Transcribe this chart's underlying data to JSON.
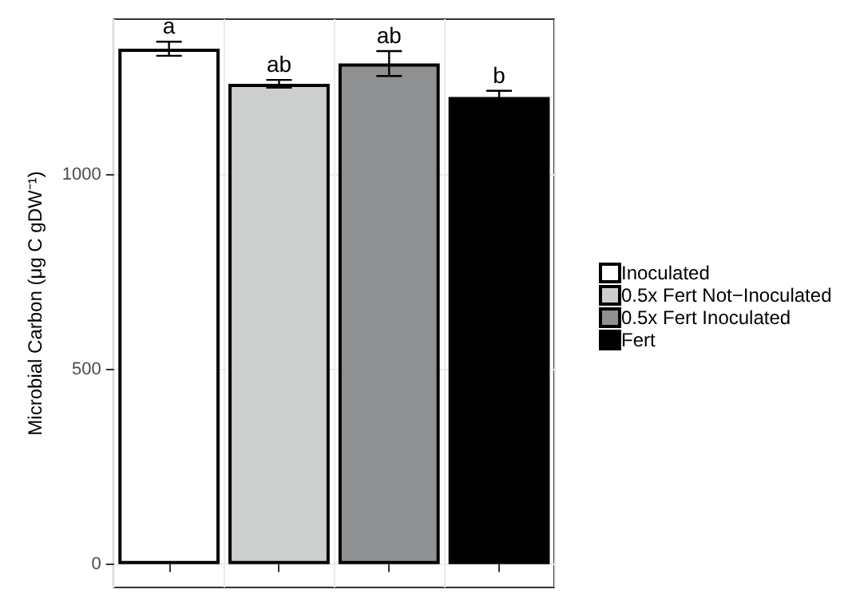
{
  "chart_data": {
    "type": "bar",
    "ylabel": "Microbial Carbon (μg C gDW⁻¹)",
    "categories": [
      null,
      null,
      null,
      null
    ],
    "series": [
      {
        "name": "Inoculated",
        "color": "#ffffff",
        "values": [
          1324,
          null,
          null,
          null
        ],
        "errors": [
          18,
          null,
          null,
          null
        ]
      },
      {
        "name": "0.5x Fert Not−Inoculated",
        "color": "#cdcfce",
        "values": [
          null,
          1234,
          null,
          null
        ],
        "errors": [
          null,
          10,
          null,
          null
        ]
      },
      {
        "name": "0.5x Fert Inoculated",
        "color": "#8f9091",
        "values": [
          null,
          null,
          1286,
          null
        ],
        "errors": [
          null,
          null,
          32,
          null
        ]
      },
      {
        "name": "Fert",
        "color": "#000000",
        "values": [
          null,
          null,
          null,
          1200
        ],
        "errors": [
          null,
          null,
          null,
          16
        ]
      }
    ],
    "stacked": true,
    "ylim": [
      -60,
      1400
    ],
    "yticks": [
      0,
      500,
      1000
    ],
    "grid": true,
    "legend": "right",
    "annotations": [
      "a",
      "ab",
      "ab",
      "b"
    ]
  }
}
